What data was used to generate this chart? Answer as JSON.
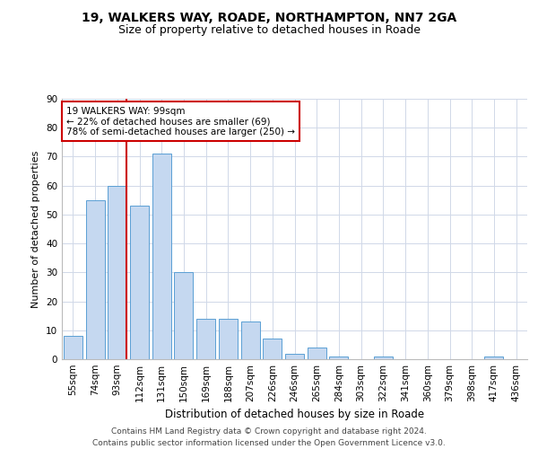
{
  "title1": "19, WALKERS WAY, ROADE, NORTHAMPTON, NN7 2GA",
  "title2": "Size of property relative to detached houses in Roade",
  "xlabel": "Distribution of detached houses by size in Roade",
  "ylabel": "Number of detached properties",
  "categories": [
    "55sqm",
    "74sqm",
    "93sqm",
    "112sqm",
    "131sqm",
    "150sqm",
    "169sqm",
    "188sqm",
    "207sqm",
    "226sqm",
    "246sqm",
    "265sqm",
    "284sqm",
    "303sqm",
    "322sqm",
    "341sqm",
    "360sqm",
    "379sqm",
    "398sqm",
    "417sqm",
    "436sqm"
  ],
  "values": [
    8,
    55,
    60,
    53,
    71,
    30,
    14,
    14,
    13,
    7,
    2,
    4,
    1,
    0,
    1,
    0,
    0,
    0,
    0,
    1,
    0
  ],
  "bar_color": "#c5d8f0",
  "bar_edge_color": "#5a9fd4",
  "vline_color": "#cc0000",
  "annotation_line1": "19 WALKERS WAY: 99sqm",
  "annotation_line2": "← 22% of detached houses are smaller (69)",
  "annotation_line3": "78% of semi-detached houses are larger (250) →",
  "annotation_box_color": "#ffffff",
  "annotation_box_edge": "#cc0000",
  "ylim": [
    0,
    90
  ],
  "yticks": [
    0,
    10,
    20,
    30,
    40,
    50,
    60,
    70,
    80,
    90
  ],
  "footer": "Contains HM Land Registry data © Crown copyright and database right 2024.\nContains public sector information licensed under the Open Government Licence v3.0.",
  "bg_color": "#ffffff",
  "grid_color": "#d0d8e8",
  "title1_fontsize": 10,
  "title2_fontsize": 9,
  "xlabel_fontsize": 8.5,
  "ylabel_fontsize": 8,
  "tick_fontsize": 7.5,
  "annotation_fontsize": 7.5,
  "footer_fontsize": 6.5
}
